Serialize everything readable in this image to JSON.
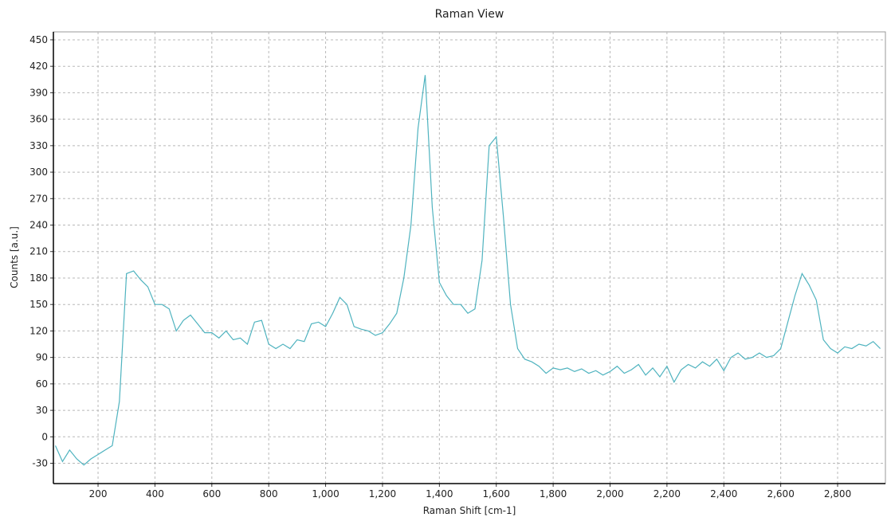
{
  "chart_data": {
    "type": "line",
    "title": "Raman View",
    "x_label": "Raman Shift [cm-1]",
    "y_label": "Counts [a.u.]",
    "xlim": [
      43,
      2968
    ],
    "ylim": [
      -53,
      459
    ],
    "grid": true,
    "xticks": [
      200,
      400,
      600,
      800,
      {
        "value": 1000,
        "label": "1,000"
      },
      {
        "value": 1200,
        "label": "1,200"
      },
      {
        "value": 1400,
        "label": "1,400"
      },
      {
        "value": 1600,
        "label": "1,600"
      },
      {
        "value": 1800,
        "label": "1,800"
      },
      {
        "value": 2000,
        "label": "2,000"
      },
      {
        "value": 2200,
        "label": "2,200"
      },
      {
        "value": 2400,
        "label": "2,400"
      },
      {
        "value": 2600,
        "label": "2,600"
      },
      {
        "value": 2800,
        "label": "2,800"
      }
    ],
    "yticks": [
      -30,
      0,
      30,
      60,
      90,
      120,
      150,
      180,
      210,
      240,
      270,
      300,
      330,
      360,
      390,
      420,
      450
    ],
    "series": [
      {
        "color": "#4fb3bf",
        "x": [
          50,
          75,
          100,
          125,
          150,
          175,
          200,
          225,
          250,
          275,
          300,
          325,
          350,
          375,
          400,
          425,
          450,
          475,
          500,
          525,
          550,
          575,
          600,
          625,
          650,
          675,
          700,
          725,
          750,
          775,
          800,
          825,
          850,
          875,
          900,
          925,
          950,
          975,
          1000,
          1025,
          1050,
          1075,
          1100,
          1125,
          1150,
          1175,
          1200,
          1225,
          1250,
          1275,
          1300,
          1325,
          1350,
          1375,
          1400,
          1425,
          1450,
          1475,
          1500,
          1525,
          1550,
          1575,
          1600,
          1625,
          1650,
          1675,
          1700,
          1725,
          1750,
          1775,
          1800,
          1825,
          1850,
          1875,
          1900,
          1925,
          1950,
          1975,
          2000,
          2025,
          2050,
          2075,
          2100,
          2125,
          2150,
          2175,
          2200,
          2225,
          2250,
          2275,
          2300,
          2325,
          2350,
          2375,
          2400,
          2425,
          2450,
          2475,
          2500,
          2525,
          2550,
          2575,
          2600,
          2625,
          2650,
          2675,
          2700,
          2725,
          2750,
          2775,
          2800,
          2825,
          2850,
          2875,
          2900,
          2925,
          2950
        ],
        "values": [
          -10,
          -28,
          -15,
          -25,
          -32,
          -25,
          -20,
          -15,
          -10,
          40,
          185,
          188,
          178,
          170,
          150,
          150,
          145,
          120,
          132,
          138,
          128,
          118,
          118,
          112,
          120,
          110,
          112,
          105,
          130,
          132,
          105,
          100,
          105,
          100,
          110,
          108,
          128,
          130,
          125,
          140,
          158,
          150,
          125,
          122,
          120,
          115,
          118,
          128,
          140,
          180,
          240,
          350,
          410,
          260,
          175,
          160,
          150,
          150,
          140,
          145,
          200,
          330,
          340,
          250,
          150,
          100,
          88,
          85,
          80,
          72,
          78,
          76,
          78,
          74,
          77,
          72,
          75,
          70,
          74,
          80,
          72,
          76,
          82,
          70,
          78,
          68,
          80,
          62,
          76,
          82,
          78,
          85,
          80,
          88,
          75,
          90,
          95,
          88,
          90,
          95,
          90,
          92,
          100,
          130,
          160,
          185,
          172,
          155,
          110,
          100,
          95,
          102,
          100,
          105,
          103,
          108,
          100
        ]
      }
    ]
  }
}
